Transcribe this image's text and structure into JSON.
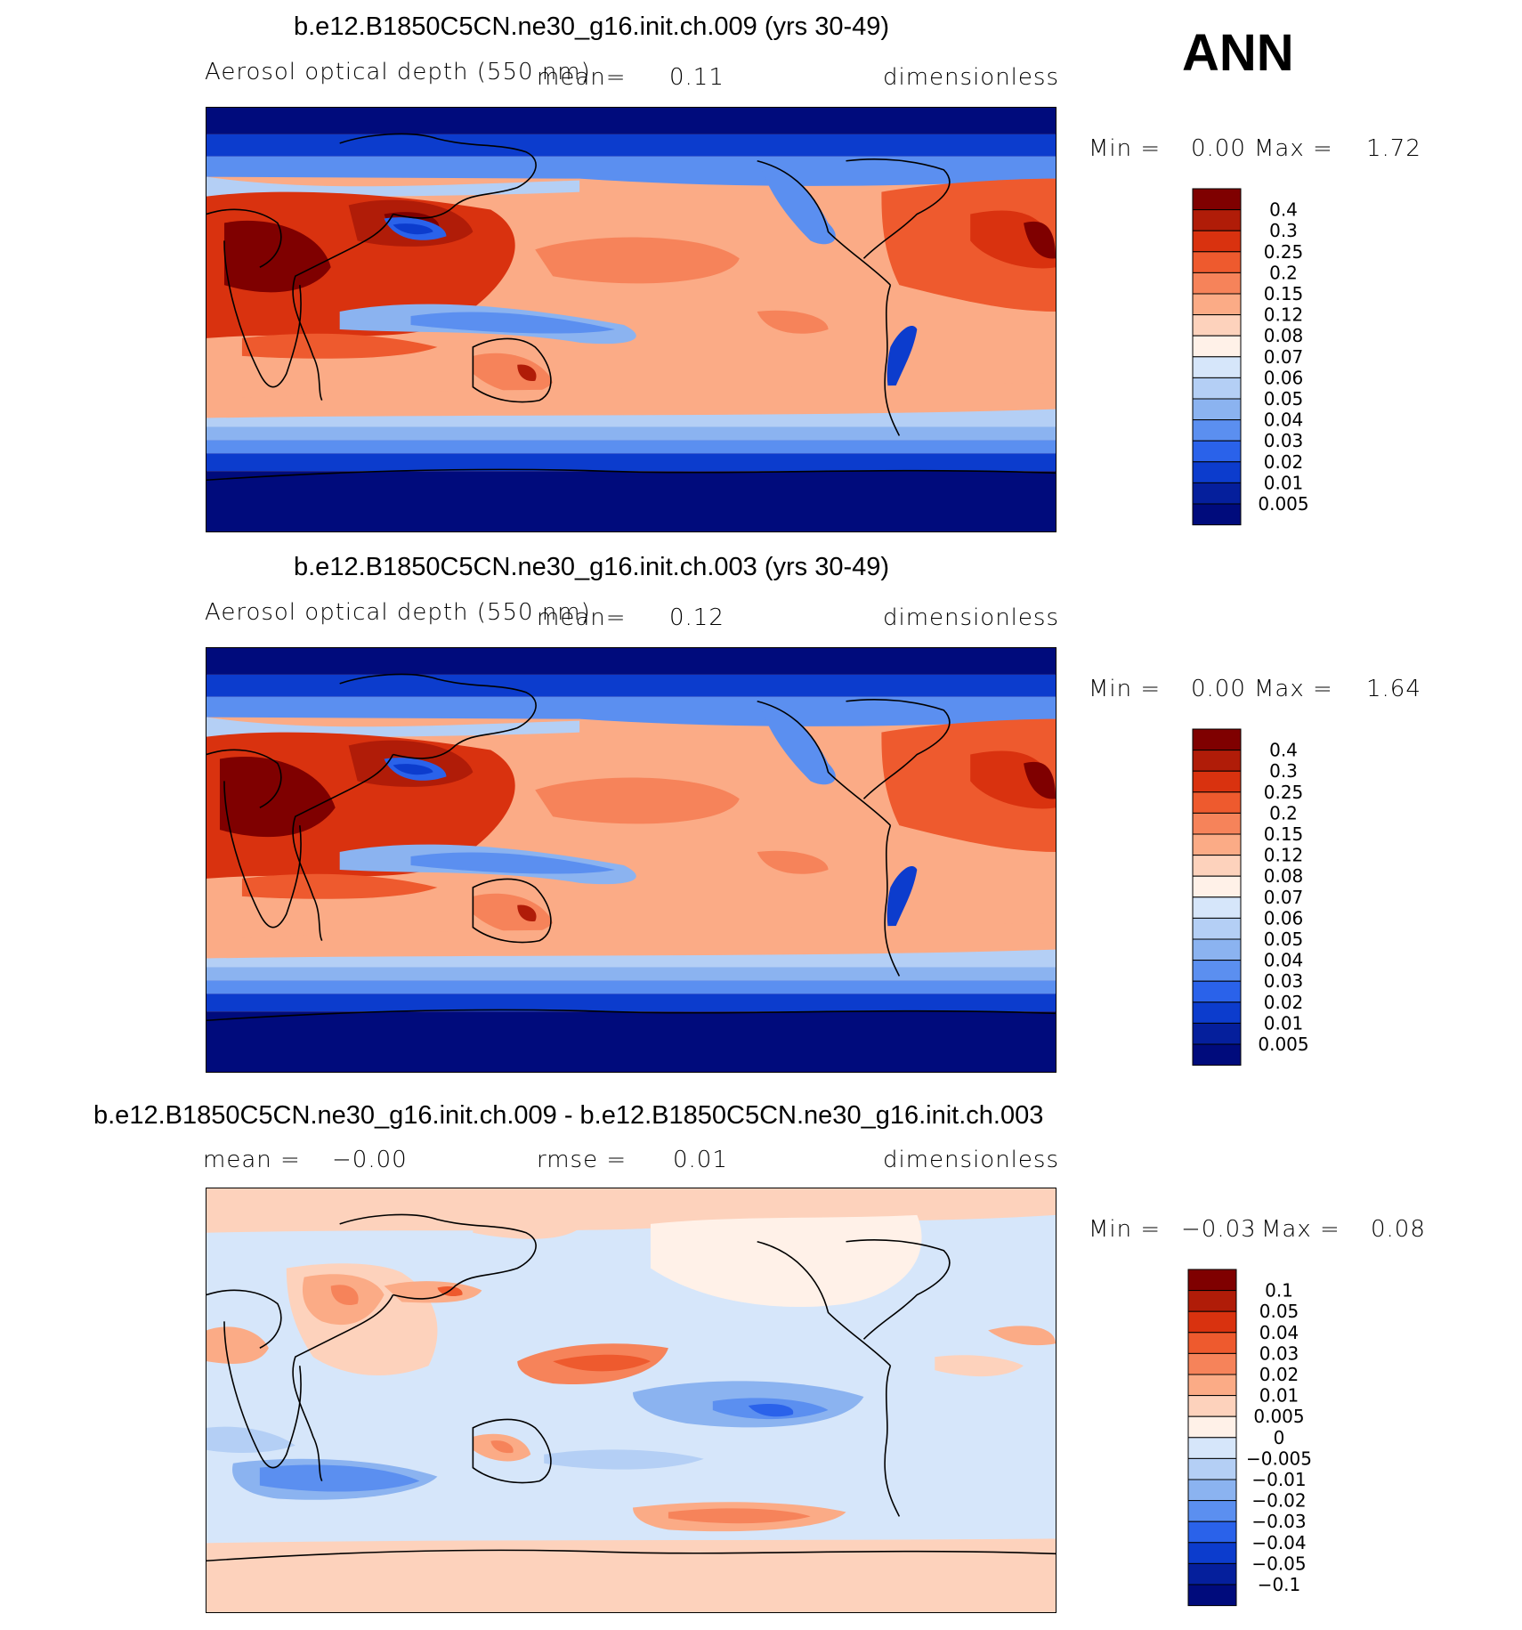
{
  "season": "ANN",
  "panels": [
    {
      "title": "b.e12.B1850C5CN.ne30_g16.init.ch.009 (yrs 30-49)",
      "variable": "Aerosol optical depth (550 nm)",
      "mean_label": "mean=",
      "mean_value": "0.11",
      "units": "dimensionless",
      "min_label": "Min =",
      "min_value": "0.00",
      "max_label": "Max =",
      "max_value": "1.72",
      "colorbar_levels": [
        "0.4",
        "0.3",
        "0.25",
        "0.2",
        "0.15",
        "0.12",
        "0.08",
        "0.07",
        "0.06",
        "0.05",
        "0.04",
        "0.03",
        "0.02",
        "0.01",
        "0.005"
      ],
      "colorbar_colors": [
        "#7f0000",
        "#b01c08",
        "#d9320f",
        "#ee5a2e",
        "#f6835a",
        "#fbab86",
        "#fdd2bc",
        "#fff1e8",
        "#d6e6fa",
        "#b4cff5",
        "#8bb3f0",
        "#5b8ff0",
        "#2a62ea",
        "#0c3ccd",
        "#051f9c",
        "#000b7c"
      ]
    },
    {
      "title": "b.e12.B1850C5CN.ne30_g16.init.ch.003 (yrs 30-49)",
      "variable": "Aerosol optical depth (550 nm)",
      "mean_label": "mean=",
      "mean_value": "0.12",
      "units": "dimensionless",
      "min_label": "Min =",
      "min_value": "0.00",
      "max_label": "Max =",
      "max_value": "1.64",
      "colorbar_levels": [
        "0.4",
        "0.3",
        "0.25",
        "0.2",
        "0.15",
        "0.12",
        "0.08",
        "0.07",
        "0.06",
        "0.05",
        "0.04",
        "0.03",
        "0.02",
        "0.01",
        "0.005"
      ],
      "colorbar_colors": [
        "#7f0000",
        "#b01c08",
        "#d9320f",
        "#ee5a2e",
        "#f6835a",
        "#fbab86",
        "#fdd2bc",
        "#fff1e8",
        "#d6e6fa",
        "#b4cff5",
        "#8bb3f0",
        "#5b8ff0",
        "#2a62ea",
        "#0c3ccd",
        "#051f9c",
        "#000b7c"
      ]
    },
    {
      "title": "b.e12.B1850C5CN.ne30_g16.init.ch.009 - b.e12.B1850C5CN.ne30_g16.init.ch.003",
      "mean_label": "mean =",
      "mean_value": "−0.00",
      "rmse_label": "rmse =",
      "rmse_value": "0.01",
      "units": "dimensionless",
      "min_label": "Min =",
      "min_value": "−0.03",
      "max_label": "Max =",
      "max_value": "0.08",
      "colorbar_levels": [
        "0.1",
        "0.05",
        "0.04",
        "0.03",
        "0.02",
        "0.01",
        "0.005",
        "0",
        "−0.005",
        "−0.01",
        "−0.02",
        "−0.03",
        "−0.04",
        "−0.05",
        "−0.1"
      ],
      "colorbar_colors": [
        "#7f0000",
        "#b01c08",
        "#d9320f",
        "#ee5a2e",
        "#f6835a",
        "#fbab86",
        "#fdd2bc",
        "#fff1e8",
        "#d6e6fa",
        "#b4cff5",
        "#8bb3f0",
        "#5b8ff0",
        "#2a62ea",
        "#0c3ccd",
        "#051f9c",
        "#000b7c"
      ]
    }
  ],
  "chart_data": [
    {
      "type": "heatmap",
      "title": "b.e12.B1850C5CN.ne30_g16.init.ch.009 (yrs 30-49)",
      "variable": "Aerosol optical depth (550 nm)",
      "units": "dimensionless",
      "mean": 0.11,
      "min": 0.0,
      "max": 1.72,
      "contour_levels": [
        0.005,
        0.01,
        0.02,
        0.03,
        0.04,
        0.05,
        0.06,
        0.07,
        0.08,
        0.12,
        0.15,
        0.2,
        0.25,
        0.3,
        0.4
      ]
    },
    {
      "type": "heatmap",
      "title": "b.e12.B1850C5CN.ne30_g16.init.ch.003 (yrs 30-49)",
      "variable": "Aerosol optical depth (550 nm)",
      "units": "dimensionless",
      "mean": 0.12,
      "min": 0.0,
      "max": 1.64,
      "contour_levels": [
        0.005,
        0.01,
        0.02,
        0.03,
        0.04,
        0.05,
        0.06,
        0.07,
        0.08,
        0.12,
        0.15,
        0.2,
        0.25,
        0.3,
        0.4
      ]
    },
    {
      "type": "heatmap",
      "title": "b.e12.B1850C5CN.ne30_g16.init.ch.009 - b.e12.B1850C5CN.ne30_g16.init.ch.003",
      "units": "dimensionless",
      "mean": -0.0,
      "rmse": 0.01,
      "min": -0.03,
      "max": 0.08,
      "contour_levels": [
        -0.1,
        -0.05,
        -0.04,
        -0.03,
        -0.02,
        -0.01,
        -0.005,
        0,
        0.005,
        0.01,
        0.02,
        0.03,
        0.04,
        0.05,
        0.1
      ]
    }
  ]
}
